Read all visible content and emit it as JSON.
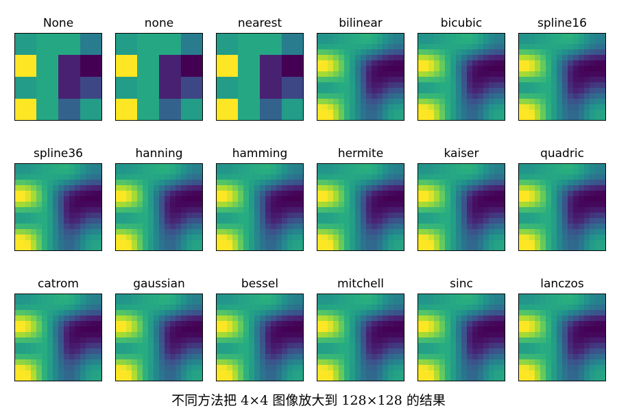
{
  "chart_data": {
    "type": "heatmap",
    "colormap": "viridis",
    "grid_rows": 3,
    "grid_cols": 6,
    "source_matrix": [
      [
        0.55,
        0.6,
        0.6,
        0.42
      ],
      [
        1.0,
        0.6,
        0.12,
        0.0
      ],
      [
        0.55,
        0.6,
        0.12,
        0.22
      ],
      [
        1.0,
        0.6,
        0.32,
        0.55
      ]
    ],
    "upsampled_size": 128,
    "panels": [
      {
        "title": "None",
        "method": "nearest"
      },
      {
        "title": "none",
        "method": "nearest"
      },
      {
        "title": "nearest",
        "method": "nearest"
      },
      {
        "title": "bilinear",
        "method": "smooth"
      },
      {
        "title": "bicubic",
        "method": "smooth"
      },
      {
        "title": "spline16",
        "method": "smooth"
      },
      {
        "title": "spline36",
        "method": "smooth"
      },
      {
        "title": "hanning",
        "method": "smooth"
      },
      {
        "title": "hamming",
        "method": "smooth"
      },
      {
        "title": "hermite",
        "method": "smooth"
      },
      {
        "title": "kaiser",
        "method": "smooth"
      },
      {
        "title": "quadric",
        "method": "smooth"
      },
      {
        "title": "catrom",
        "method": "smooth"
      },
      {
        "title": "gaussian",
        "method": "smooth"
      },
      {
        "title": "bessel",
        "method": "smooth"
      },
      {
        "title": "mitchell",
        "method": "smooth"
      },
      {
        "title": "sinc",
        "method": "smooth"
      },
      {
        "title": "lanczos",
        "method": "smooth"
      }
    ]
  },
  "caption": "不同方法把 4×4 图像放大到 128×128 的结果"
}
